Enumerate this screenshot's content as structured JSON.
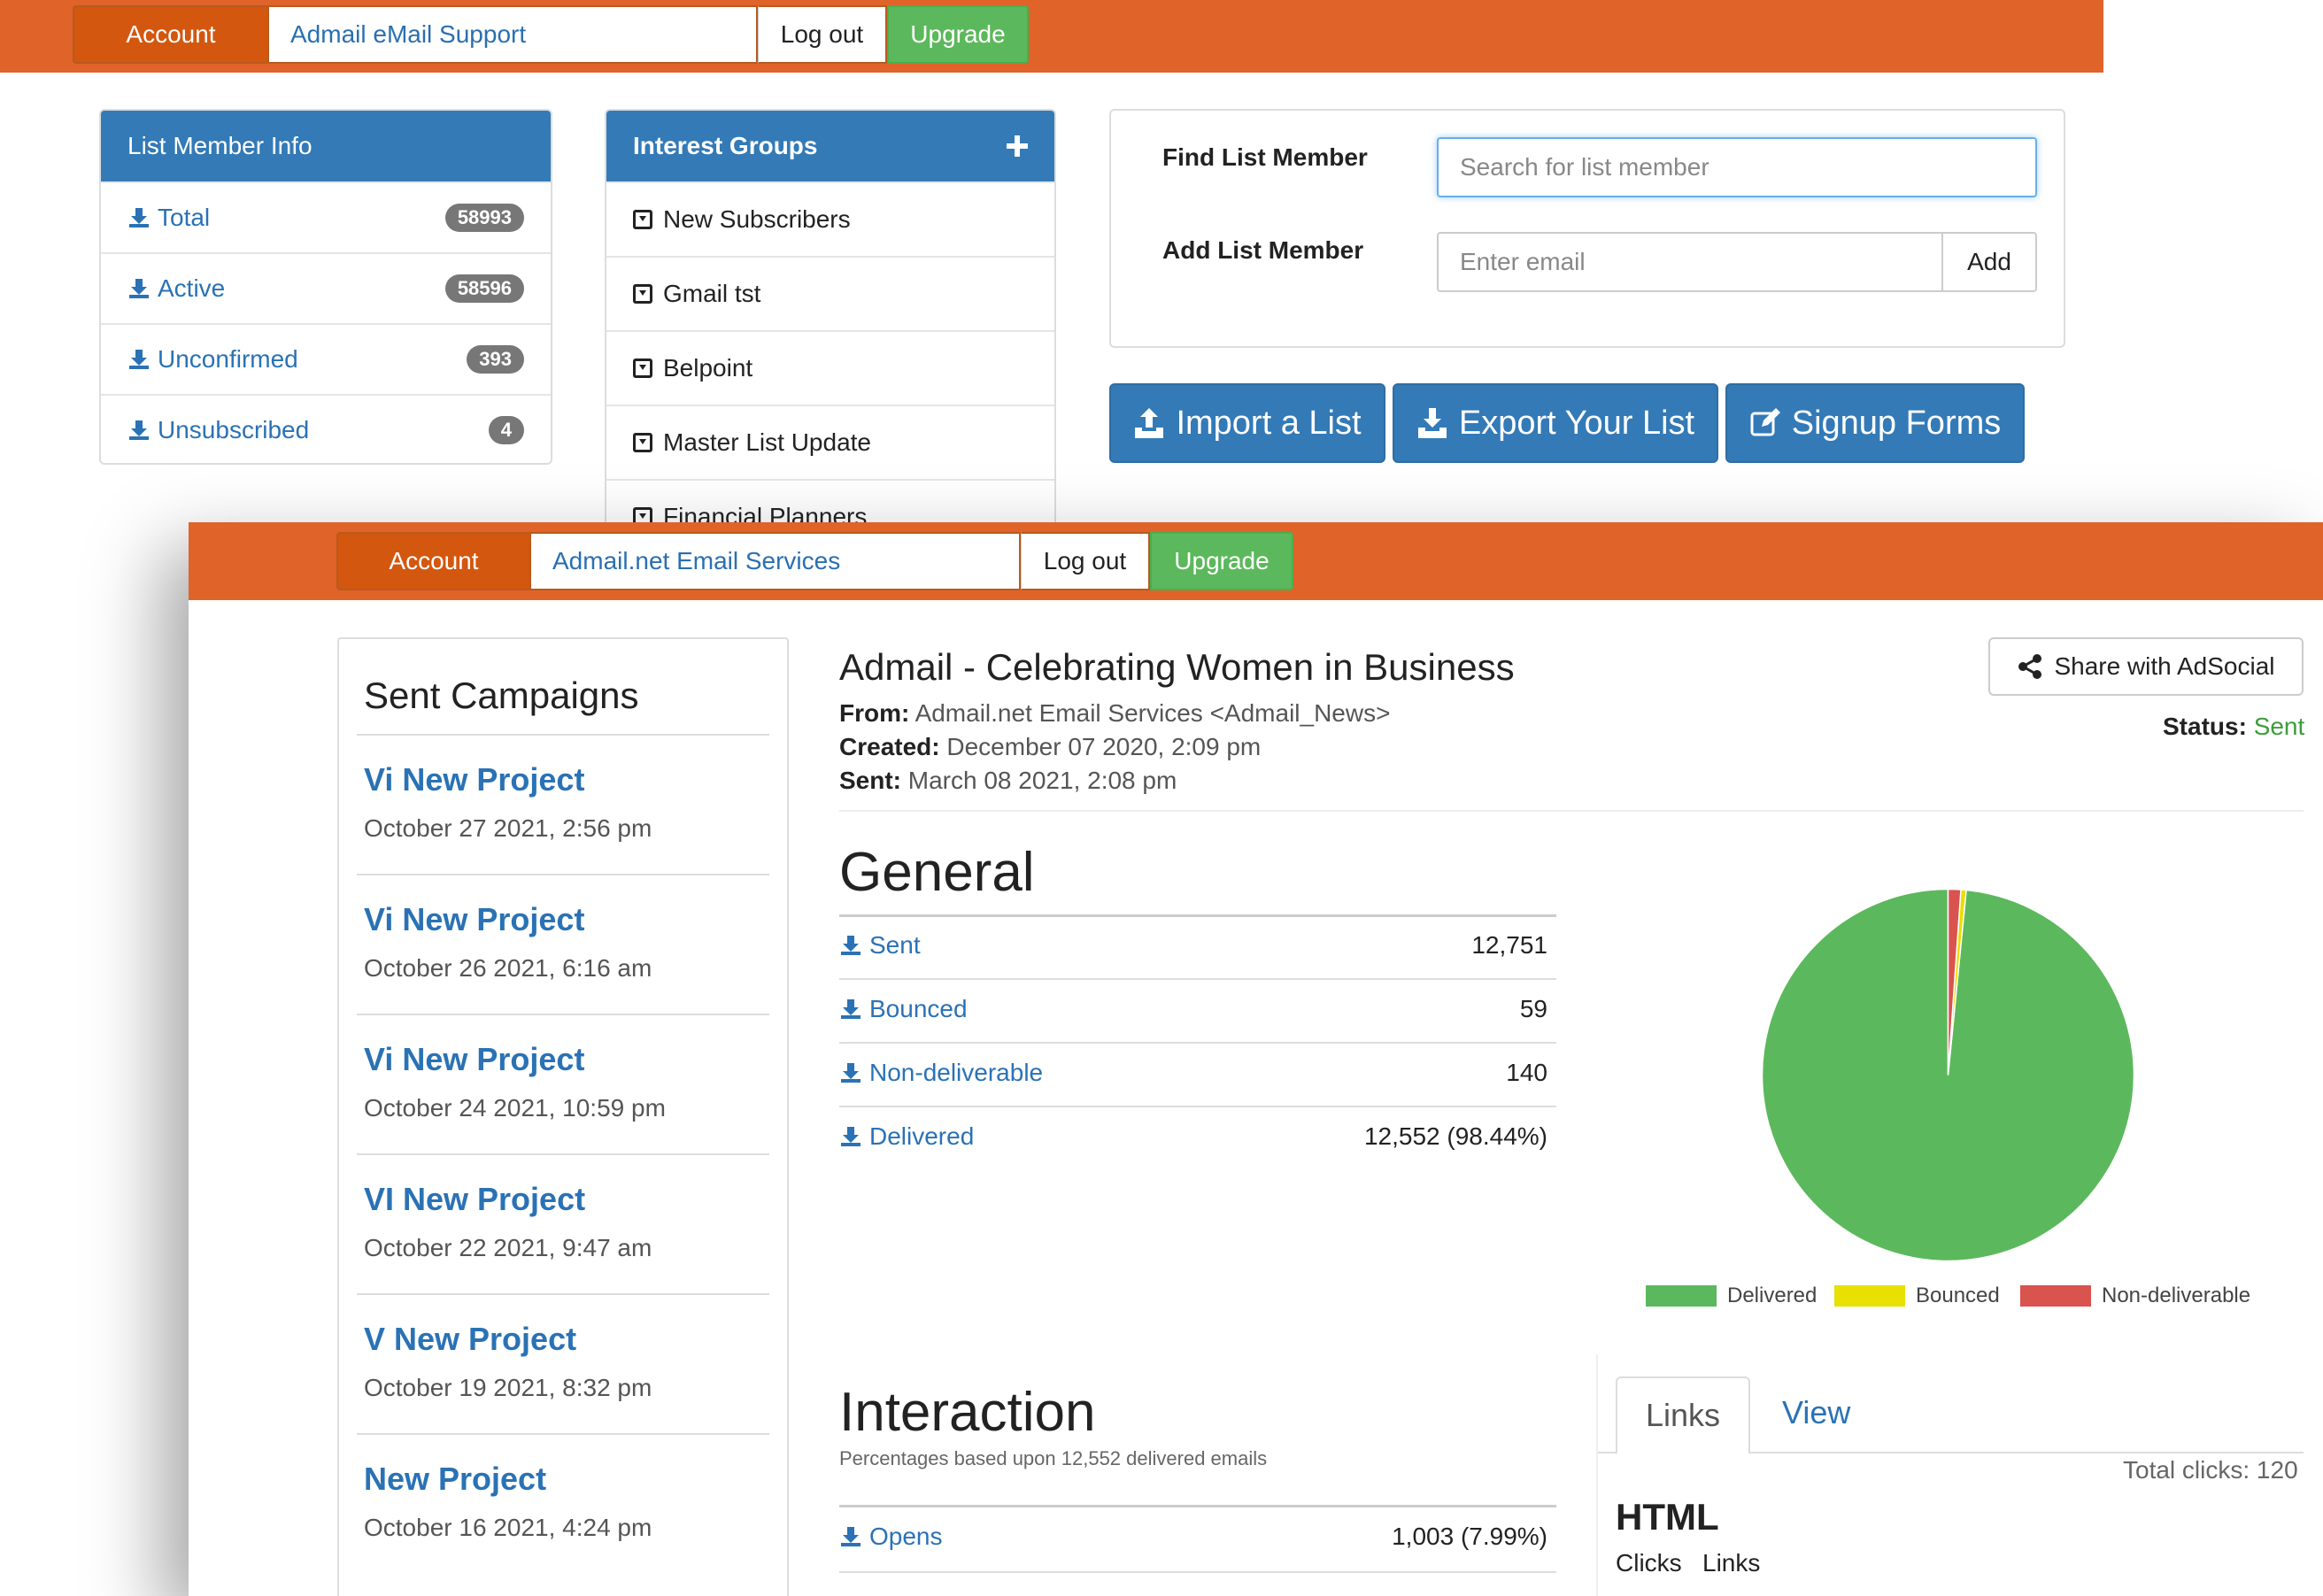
{
  "colors": {
    "topbar": "#e0632a",
    "primary": "#337ab7",
    "success": "#5cb85c",
    "pie_delivered": "#5cb85c",
    "pie_bounced": "#e8e000",
    "pie_nondeliverable": "#d9534f"
  },
  "bg": {
    "nav": {
      "account": "Account",
      "brand": "Admail eMail Support",
      "logout": "Log out",
      "upgrade": "Upgrade"
    },
    "list_member_info": {
      "title": "List Member Info",
      "rows": [
        {
          "label": "Total",
          "count": "58993"
        },
        {
          "label": "Active",
          "count": "58596"
        },
        {
          "label": "Unconfirmed",
          "count": "393"
        },
        {
          "label": "Unsubscribed",
          "count": "4"
        }
      ]
    },
    "interest_groups": {
      "title": "Interest Groups",
      "items": [
        "New Subscribers",
        "Gmail tst",
        "Belpoint",
        "Master List Update",
        "Financial Planners"
      ]
    },
    "find_member": {
      "label": "Find List Member",
      "placeholder": "Search for list member"
    },
    "add_member": {
      "label": "Add List Member",
      "placeholder": "Enter email",
      "button": "Add"
    },
    "actions": {
      "import": "Import a List",
      "export": "Export Your List",
      "signup": "Signup Forms"
    }
  },
  "fg": {
    "nav": {
      "account": "Account",
      "brand": "Admail.net Email Services",
      "logout": "Log out",
      "upgrade": "Upgrade"
    },
    "sent_campaigns": {
      "title": "Sent Campaigns",
      "items": [
        {
          "name": "Vi New Project",
          "date": "October 27 2021, 2:56 pm"
        },
        {
          "name": "Vi New Project",
          "date": "October 26 2021, 6:16 am"
        },
        {
          "name": "Vi New Project",
          "date": "October 24 2021, 10:59 pm"
        },
        {
          "name": "VI New Project",
          "date": "October 22 2021, 9:47 am"
        },
        {
          "name": "V New Project",
          "date": "October 19 2021, 8:32 pm"
        },
        {
          "name": "New Project",
          "date": "October 16 2021, 4:24 pm"
        }
      ]
    },
    "campaign": {
      "title": "Admail - Celebrating Women in Business",
      "from_label": "From:",
      "from": "Admail.net Email Services <Admail_News>",
      "created_label": "Created:",
      "created": "December 07 2020, 2:09 pm",
      "sent_label": "Sent:",
      "sent": "March 08 2021, 2:08 pm",
      "share": "Share with AdSocial",
      "status_label": "Status:",
      "status": "Sent"
    },
    "general": {
      "title": "General",
      "rows": [
        {
          "label": "Sent",
          "value": "12,751"
        },
        {
          "label": "Bounced",
          "value": "59"
        },
        {
          "label": "Non-deliverable",
          "value": "140"
        },
        {
          "label": "Delivered",
          "value": "12,552 (98.44%)"
        }
      ]
    },
    "pie": {
      "legend": [
        "Delivered",
        "Bounced",
        "Non-deliverable"
      ],
      "values": [
        12552,
        59,
        140
      ]
    },
    "interaction": {
      "title": "Interaction",
      "subtitle": "Percentages based upon 12,552 delivered emails",
      "rows": [
        {
          "label": "Opens",
          "value": "1,003 (7.99%)"
        }
      ]
    },
    "tabs": {
      "links": "Links",
      "view": "View",
      "total_clicks": "Total clicks: 120",
      "html": "HTML",
      "clicks": "Clicks",
      "links_col": "Links"
    }
  }
}
